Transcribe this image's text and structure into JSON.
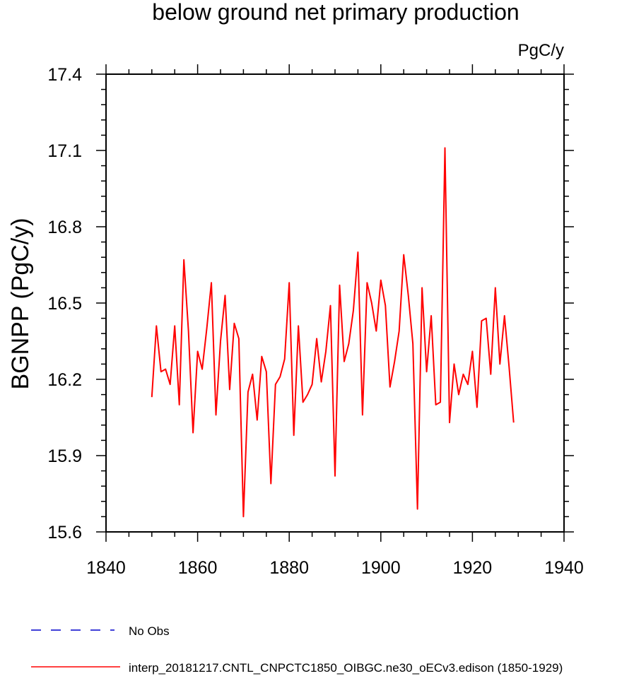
{
  "chart_data": {
    "type": "line",
    "title": "below ground net primary production",
    "units_label": "PgC/y",
    "ylabel": "BGNPP  (PgC/y)",
    "xlabel": "",
    "xlim": [
      1840,
      1940
    ],
    "ylim": [
      15.6,
      17.4
    ],
    "x_ticks": [
      1840,
      1860,
      1880,
      1900,
      1920,
      1940
    ],
    "x_tick_labels": [
      "1840",
      "1860",
      "1880",
      "1900",
      "1920",
      "1940"
    ],
    "y_ticks": [
      15.6,
      15.9,
      16.2,
      16.5,
      16.8,
      17.1,
      17.4
    ],
    "y_tick_labels": [
      "15.6",
      "15.9",
      "16.2",
      "16.5",
      "16.8",
      "17.1",
      "17.4"
    ],
    "grid": false,
    "legend_position": "bottom-left",
    "series": [
      {
        "name": "No Obs",
        "color": "#0000cc",
        "dash": "dashed",
        "x": [],
        "values": []
      },
      {
        "name": "interp_20181217.CNTL_CNPCTC1850_OIBGC.ne30_oECv3.edison (1850-1929)",
        "color": "#ff0000",
        "dash": "solid",
        "x": [
          1850,
          1851,
          1852,
          1853,
          1854,
          1855,
          1856,
          1857,
          1858,
          1859,
          1860,
          1861,
          1862,
          1863,
          1864,
          1865,
          1866,
          1867,
          1868,
          1869,
          1870,
          1871,
          1872,
          1873,
          1874,
          1875,
          1876,
          1877,
          1878,
          1879,
          1880,
          1881,
          1882,
          1883,
          1884,
          1885,
          1886,
          1887,
          1888,
          1889,
          1890,
          1891,
          1892,
          1893,
          1894,
          1895,
          1896,
          1897,
          1898,
          1899,
          1900,
          1901,
          1902,
          1903,
          1904,
          1905,
          1906,
          1907,
          1908,
          1909,
          1910,
          1911,
          1912,
          1913,
          1914,
          1915,
          1916,
          1917,
          1918,
          1919,
          1920,
          1921,
          1922,
          1923,
          1924,
          1925,
          1926,
          1927,
          1928,
          1929
        ],
        "values": [
          16.13,
          16.41,
          16.23,
          16.24,
          16.18,
          16.41,
          16.1,
          16.67,
          16.39,
          15.99,
          16.31,
          16.24,
          16.4,
          16.58,
          16.06,
          16.35,
          16.53,
          16.16,
          16.42,
          16.36,
          15.66,
          16.15,
          16.22,
          16.04,
          16.29,
          16.23,
          15.79,
          16.18,
          16.21,
          16.28,
          16.58,
          15.98,
          16.41,
          16.11,
          16.14,
          16.18,
          16.36,
          16.19,
          16.31,
          16.49,
          15.82,
          16.57,
          16.27,
          16.34,
          16.47,
          16.7,
          16.06,
          16.58,
          16.5,
          16.39,
          16.59,
          16.49,
          16.17,
          16.27,
          16.39,
          16.69,
          16.53,
          16.34,
          15.69,
          16.56,
          16.23,
          16.45,
          16.1,
          16.11,
          17.11,
          16.03,
          16.26,
          16.14,
          16.22,
          16.18,
          16.31,
          16.09,
          16.43,
          16.44,
          16.22,
          16.56,
          16.26,
          16.45,
          16.25,
          16.03
        ]
      }
    ]
  }
}
